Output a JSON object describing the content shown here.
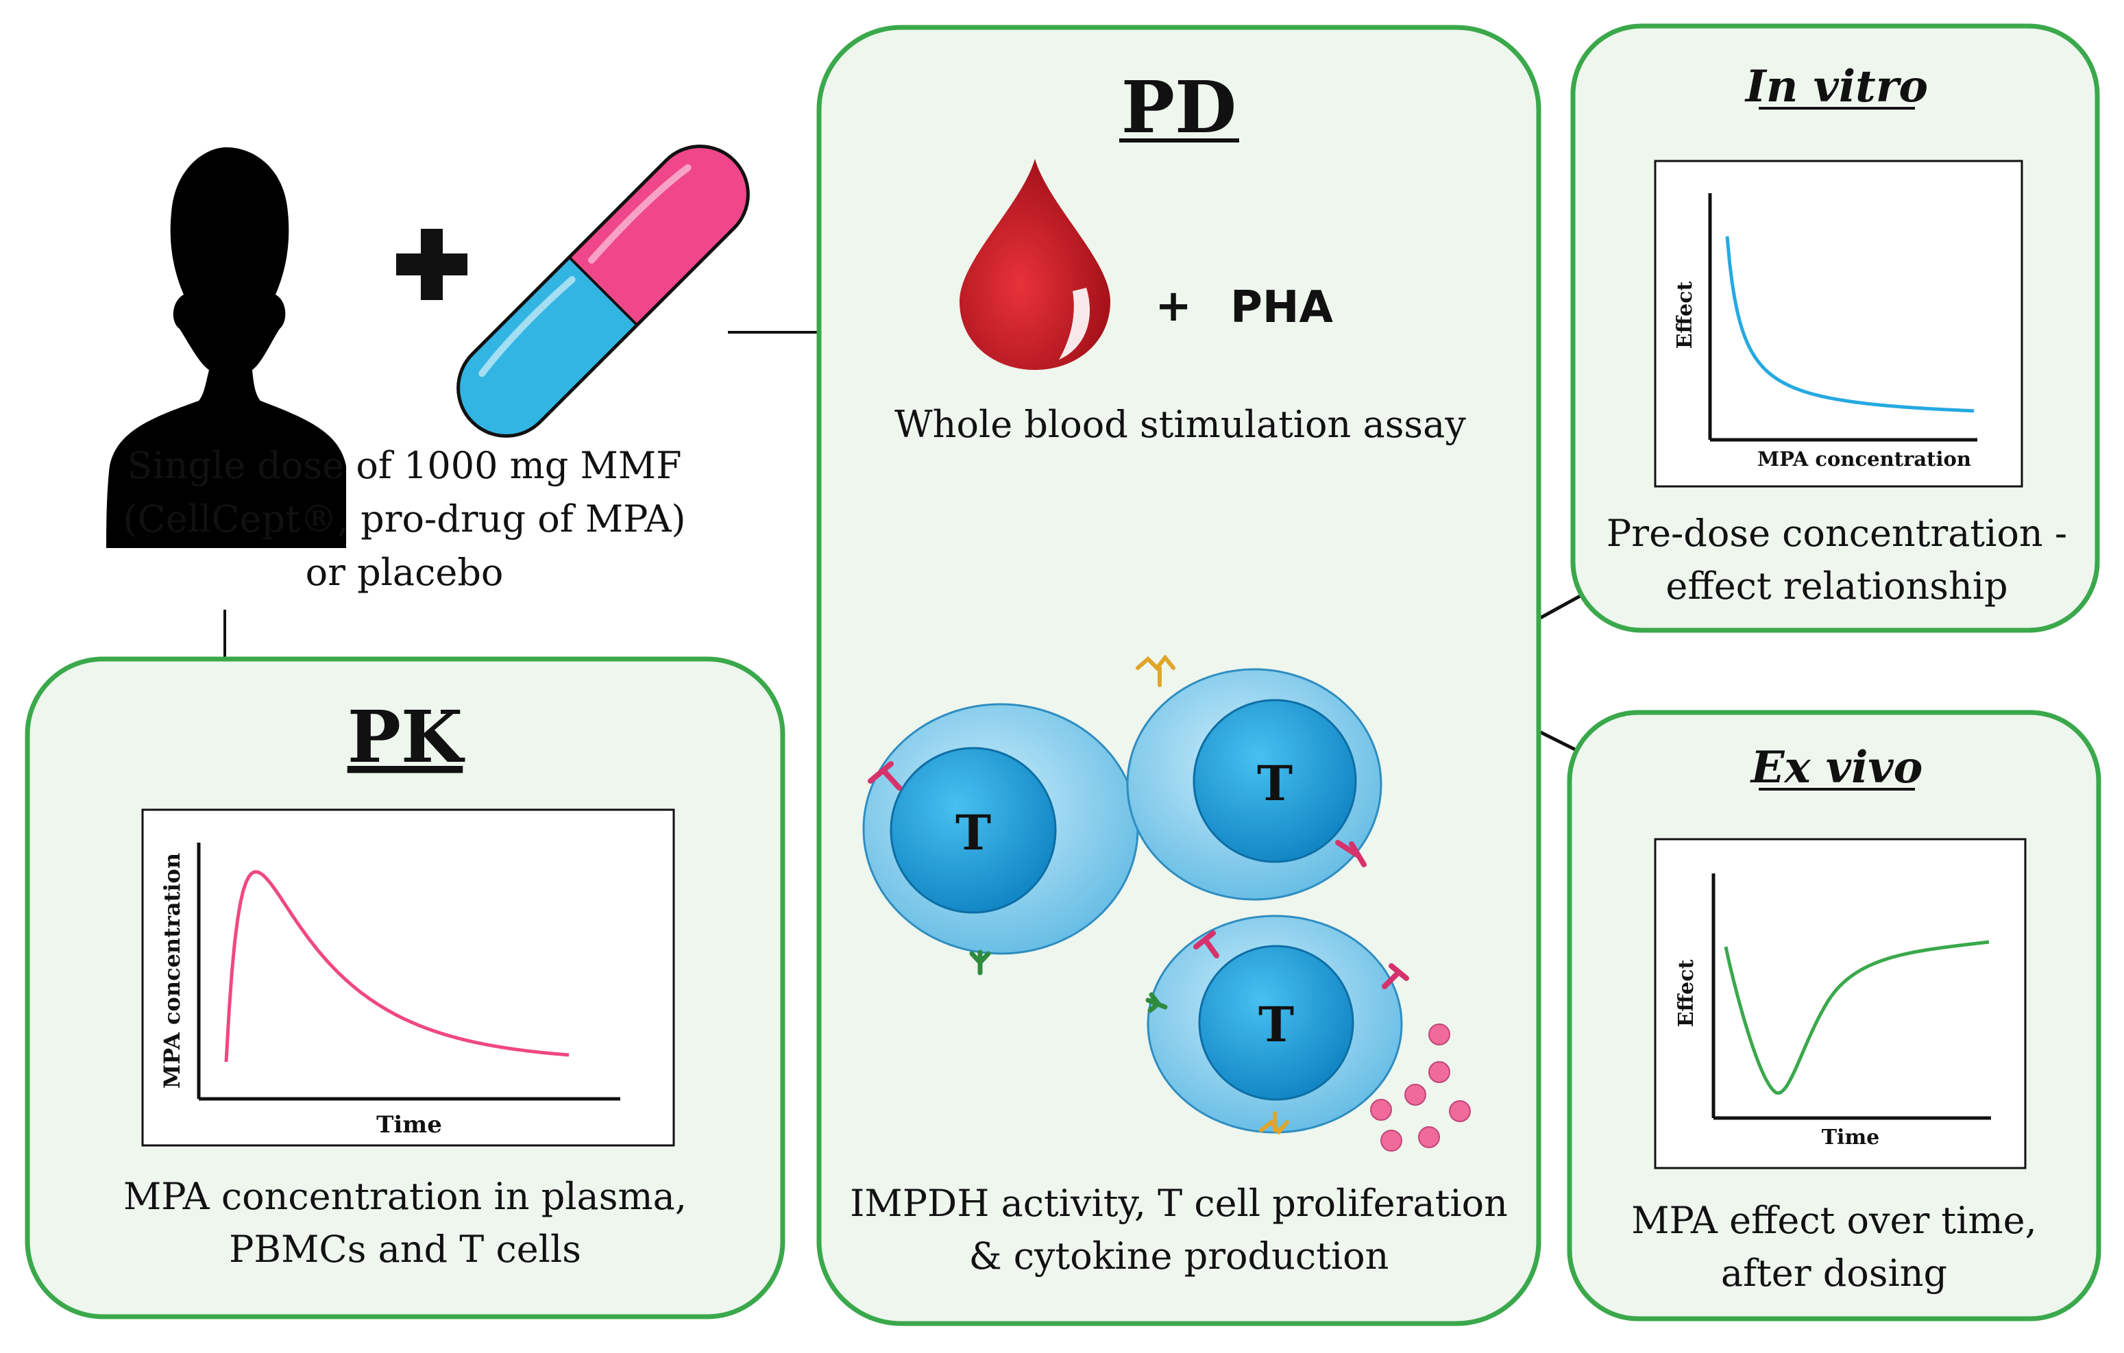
{
  "intro": {
    "plus": "+",
    "dose_text_lines": [
      "Single dose of 1000 mg MMF",
      "(CellCept®, pro-drug of MPA)",
      "or placebo"
    ]
  },
  "pk": {
    "title": "PK",
    "chart_xlabel": "Time",
    "chart_ylabel": "MPA concentration",
    "caption_lines": [
      "MPA concentration in plasma,",
      "PBMCs and T cells"
    ]
  },
  "pd": {
    "title": "PD",
    "plus": "+",
    "stimulant": "PHA",
    "assay_label": "Whole blood stimulation assay",
    "cell_label": "T",
    "caption_lines": [
      "IMPDH activity, T cell proliferation",
      "& cytokine production"
    ]
  },
  "in_vitro": {
    "title": "In vitro",
    "chart_xlabel": "MPA concentration",
    "chart_ylabel": "Effect",
    "caption_lines": [
      "Pre-dose concentration -",
      "effect relationship"
    ]
  },
  "ex_vivo": {
    "title": "Ex vivo",
    "chart_xlabel": "Time",
    "chart_ylabel": "Effect",
    "caption_lines": [
      "MPA effect over time,",
      "after dosing"
    ]
  },
  "colors": {
    "panel_border": "#3aa84b",
    "panel_fill": "#eef6ee",
    "pk_curve": "#f0487f",
    "in_vitro_curve": "#25a9e0",
    "ex_vivo_curve": "#3aa84b",
    "blood": "#c8121c",
    "capsule_pink": "#f0478a",
    "capsule_blue": "#33b5e3",
    "cell_blue": "#5fbfe8",
    "nucleus_blue": "#1792cf",
    "cytokine_pink": "#f06b9a"
  }
}
